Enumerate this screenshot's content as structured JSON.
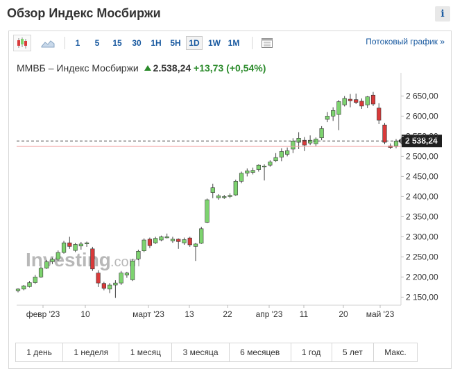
{
  "header": {
    "title": "Обзор Индекс Мосбиржи",
    "info_label": "i"
  },
  "toolbar": {
    "chart_icons": [
      "candlestick-chart-icon",
      "area-chart-icon",
      "settings-panel-icon"
    ],
    "timeframes": [
      "1",
      "5",
      "15",
      "30",
      "1H",
      "5H",
      "1D",
      "1W",
      "1M"
    ],
    "active_timeframe": "1D",
    "streaming_link": "Потоковый график  »"
  },
  "quote": {
    "name": "ММВБ – Индекс Мосбиржи",
    "price": "2.538,24",
    "change": "+13,73",
    "change_pct": "(+0,54%)"
  },
  "watermark": {
    "text": "Investing",
    "suffix": ".com"
  },
  "ranges": [
    "1 день",
    "1 неделя",
    "1 месяц",
    "3 месяца",
    "6 месяцев",
    "1 год",
    "5 лет",
    "Макс."
  ],
  "colors": {
    "up": "#7dd36f",
    "down": "#d93a3a",
    "link": "#1a5aa0",
    "positive": "#2a8a2a"
  },
  "chart_data": {
    "type": "candlestick",
    "x_tick_labels": [
      "февр '23",
      "10",
      "март '23",
      "13",
      "22",
      "апр '23",
      "11",
      "20",
      "май '23"
    ],
    "y_tick_labels": [
      "2 150,00",
      "2 200,00",
      "2 250,00",
      "2 300,00",
      "2 350,00",
      "2 400,00",
      "2 450,00",
      "2 500,00",
      "2 550,00",
      "2 600,00",
      "2 650,00"
    ],
    "ylim": [
      2130,
      2680
    ],
    "last_price_label": "2 538,24",
    "last_price": 2538.24,
    "previous_close": 2524.51,
    "candles": [
      {
        "o": 2166,
        "h": 2172,
        "l": 2162,
        "c": 2170
      },
      {
        "o": 2170,
        "h": 2180,
        "l": 2167,
        "c": 2178
      },
      {
        "o": 2176,
        "h": 2190,
        "l": 2174,
        "c": 2186
      },
      {
        "o": 2186,
        "h": 2205,
        "l": 2183,
        "c": 2200
      },
      {
        "o": 2200,
        "h": 2226,
        "l": 2198,
        "c": 2222
      },
      {
        "o": 2222,
        "h": 2242,
        "l": 2220,
        "c": 2238
      },
      {
        "o": 2238,
        "h": 2248,
        "l": 2232,
        "c": 2244
      },
      {
        "o": 2244,
        "h": 2266,
        "l": 2240,
        "c": 2261
      },
      {
        "o": 2261,
        "h": 2290,
        "l": 2258,
        "c": 2285
      },
      {
        "o": 2285,
        "h": 2300,
        "l": 2270,
        "c": 2276
      },
      {
        "o": 2266,
        "h": 2285,
        "l": 2262,
        "c": 2281
      },
      {
        "o": 2277,
        "h": 2287,
        "l": 2268,
        "c": 2282
      },
      {
        "o": 2283,
        "h": 2288,
        "l": 2275,
        "c": 2285
      },
      {
        "o": 2270,
        "h": 2275,
        "l": 2215,
        "c": 2220
      },
      {
        "o": 2210,
        "h": 2217,
        "l": 2175,
        "c": 2185
      },
      {
        "o": 2184,
        "h": 2188,
        "l": 2167,
        "c": 2172
      },
      {
        "o": 2170,
        "h": 2185,
        "l": 2160,
        "c": 2180
      },
      {
        "o": 2180,
        "h": 2192,
        "l": 2148,
        "c": 2185
      },
      {
        "o": 2185,
        "h": 2215,
        "l": 2180,
        "c": 2210
      },
      {
        "o": 2205,
        "h": 2213,
        "l": 2198,
        "c": 2210
      },
      {
        "o": 2193,
        "h": 2245,
        "l": 2190,
        "c": 2240
      },
      {
        "o": 2245,
        "h": 2268,
        "l": 2242,
        "c": 2264
      },
      {
        "o": 2265,
        "h": 2296,
        "l": 2262,
        "c": 2292
      },
      {
        "o": 2294,
        "h": 2298,
        "l": 2272,
        "c": 2278
      },
      {
        "o": 2285,
        "h": 2300,
        "l": 2282,
        "c": 2296
      },
      {
        "o": 2292,
        "h": 2303,
        "l": 2289,
        "c": 2300
      },
      {
        "o": 2300,
        "h": 2308,
        "l": 2296,
        "c": 2300
      },
      {
        "o": 2290,
        "h": 2300,
        "l": 2285,
        "c": 2294
      },
      {
        "o": 2294,
        "h": 2296,
        "l": 2270,
        "c": 2288
      },
      {
        "o": 2285,
        "h": 2298,
        "l": 2280,
        "c": 2293
      },
      {
        "o": 2297,
        "h": 2300,
        "l": 2275,
        "c": 2280
      },
      {
        "o": 2276,
        "h": 2285,
        "l": 2240,
        "c": 2282
      },
      {
        "o": 2284,
        "h": 2325,
        "l": 2282,
        "c": 2320
      },
      {
        "o": 2336,
        "h": 2395,
        "l": 2334,
        "c": 2392
      },
      {
        "o": 2410,
        "h": 2432,
        "l": 2396,
        "c": 2422
      },
      {
        "o": 2397,
        "h": 2406,
        "l": 2392,
        "c": 2402
      },
      {
        "o": 2398,
        "h": 2404,
        "l": 2394,
        "c": 2400
      },
      {
        "o": 2400,
        "h": 2408,
        "l": 2396,
        "c": 2403
      },
      {
        "o": 2404,
        "h": 2442,
        "l": 2402,
        "c": 2438
      },
      {
        "o": 2438,
        "h": 2462,
        "l": 2433,
        "c": 2458
      },
      {
        "o": 2458,
        "h": 2470,
        "l": 2450,
        "c": 2464
      },
      {
        "o": 2460,
        "h": 2472,
        "l": 2455,
        "c": 2465
      },
      {
        "o": 2467,
        "h": 2480,
        "l": 2462,
        "c": 2478
      },
      {
        "o": 2475,
        "h": 2480,
        "l": 2440,
        "c": 2476
      },
      {
        "o": 2478,
        "h": 2490,
        "l": 2474,
        "c": 2486
      },
      {
        "o": 2489,
        "h": 2508,
        "l": 2486,
        "c": 2497
      },
      {
        "o": 2498,
        "h": 2520,
        "l": 2488,
        "c": 2512
      },
      {
        "o": 2505,
        "h": 2522,
        "l": 2500,
        "c": 2514
      },
      {
        "o": 2518,
        "h": 2545,
        "l": 2508,
        "c": 2538
      },
      {
        "o": 2535,
        "h": 2560,
        "l": 2518,
        "c": 2545
      },
      {
        "o": 2540,
        "h": 2548,
        "l": 2513,
        "c": 2528
      },
      {
        "o": 2533,
        "h": 2552,
        "l": 2528,
        "c": 2540
      },
      {
        "o": 2531,
        "h": 2547,
        "l": 2524,
        "c": 2543
      },
      {
        "o": 2546,
        "h": 2575,
        "l": 2540,
        "c": 2569
      },
      {
        "o": 2592,
        "h": 2610,
        "l": 2585,
        "c": 2600
      },
      {
        "o": 2600,
        "h": 2622,
        "l": 2588,
        "c": 2614
      },
      {
        "o": 2604,
        "h": 2640,
        "l": 2565,
        "c": 2636
      },
      {
        "o": 2628,
        "h": 2650,
        "l": 2624,
        "c": 2644
      },
      {
        "o": 2642,
        "h": 2655,
        "l": 2622,
        "c": 2638
      },
      {
        "o": 2641,
        "h": 2656,
        "l": 2630,
        "c": 2634
      },
      {
        "o": 2637,
        "h": 2644,
        "l": 2618,
        "c": 2625
      },
      {
        "o": 2628,
        "h": 2650,
        "l": 2620,
        "c": 2648
      },
      {
        "o": 2652,
        "h": 2660,
        "l": 2625,
        "c": 2630
      },
      {
        "o": 2620,
        "h": 2632,
        "l": 2580,
        "c": 2590
      },
      {
        "o": 2578,
        "h": 2583,
        "l": 2530,
        "c": 2535
      },
      {
        "o": 2526,
        "h": 2532,
        "l": 2518,
        "c": 2522
      },
      {
        "o": 2526,
        "h": 2543,
        "l": 2520,
        "c": 2538
      }
    ]
  }
}
